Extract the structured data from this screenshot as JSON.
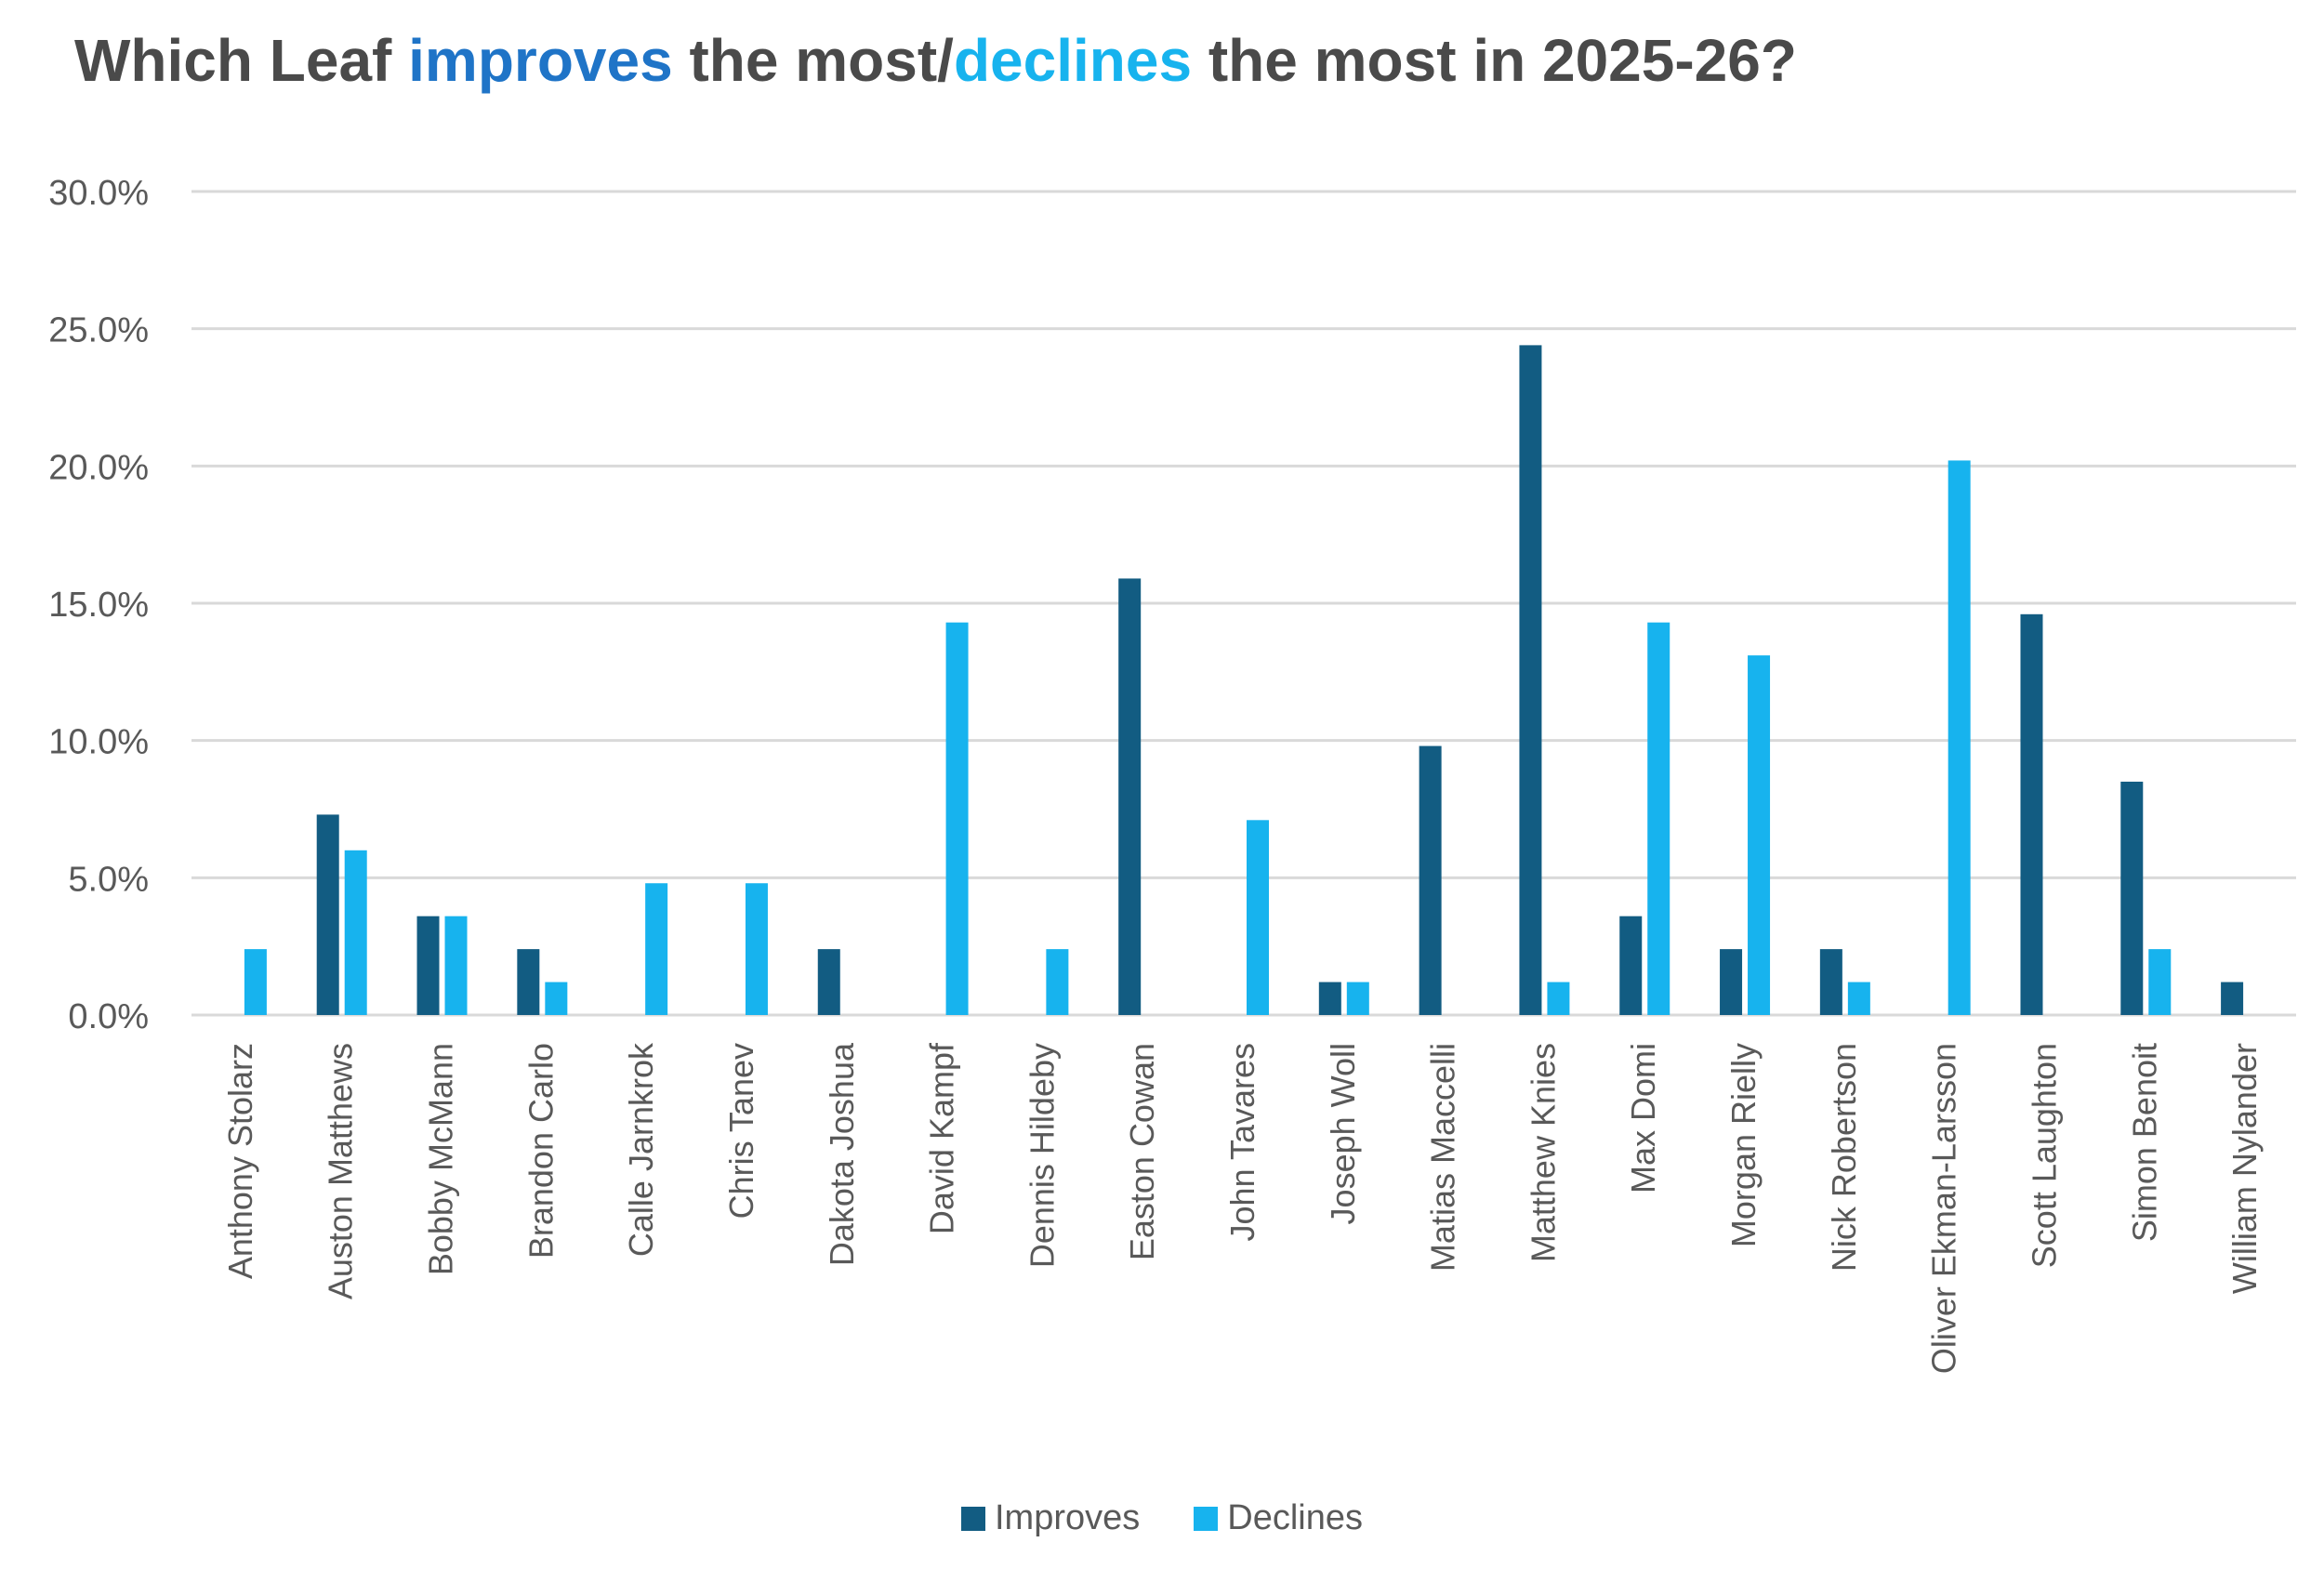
{
  "title_parts": {
    "p1": "Which Leaf ",
    "improves": "improves",
    "p2": " the most/",
    "declines": "declines",
    "p3": " the most in 2025-26?"
  },
  "colors": {
    "improves": "#125c82",
    "declines": "#17b3ee",
    "title_text": "#4a4a4a",
    "title_improves": "#1f74c7",
    "title_declines": "#17b3ee",
    "grid": "#d9d9d9",
    "tick_text": "#595959"
  },
  "chart_data": {
    "type": "bar",
    "title": "Which Leaf improves the most/declines the most in 2025-26?",
    "xlabel": "",
    "ylabel": "",
    "ylim": [
      0,
      30
    ],
    "yticks": [
      0,
      5,
      10,
      15,
      20,
      25,
      30
    ],
    "ytick_labels": [
      "0.0%",
      "5.0%",
      "10.0%",
      "15.0%",
      "20.0%",
      "25.0%",
      "30.0%"
    ],
    "grid": true,
    "legend": "bottom-center",
    "categories": [
      "Anthony Stolarz",
      "Auston Matthews",
      "Bobby McMann",
      "Brandon Carlo",
      "Calle Jarnkrok",
      "Chris Tanev",
      "Dakota Joshua",
      "David Kampf",
      "Dennis Hildeby",
      "Easton Cowan",
      "John Tavares",
      "Joseph Woll",
      "Matias Maccelli",
      "Matthew Knies",
      "Max Domi",
      "Morgan Rielly",
      "Nick Robertson",
      "Oliver Ekman-Larsson",
      "Scott Laughton",
      "Simon Benoit",
      "William Nylander"
    ],
    "series": [
      {
        "name": "Improves",
        "values": [
          0,
          7.3,
          3.6,
          2.4,
          0,
          0,
          2.4,
          0,
          0,
          15.9,
          0,
          1.2,
          9.8,
          24.4,
          3.6,
          2.4,
          2.4,
          0,
          14.6,
          8.5,
          1.2
        ]
      },
      {
        "name": "Declines",
        "values": [
          2.4,
          6.0,
          3.6,
          1.2,
          4.8,
          4.8,
          0,
          14.3,
          2.4,
          0,
          7.1,
          1.2,
          0,
          1.2,
          14.3,
          13.1,
          1.2,
          20.2,
          0,
          2.4,
          0
        ]
      }
    ]
  }
}
